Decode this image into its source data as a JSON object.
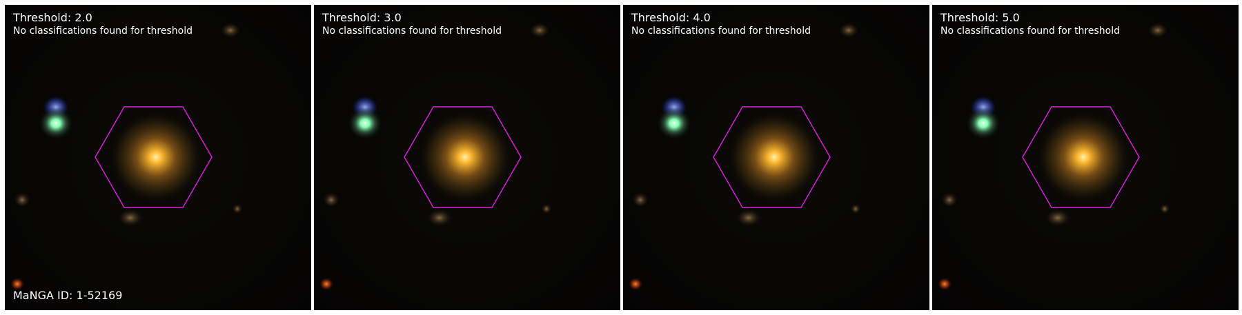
{
  "manga_id": "MaNGA ID: 1-52169",
  "panels": [
    {
      "title": "Threshold: 2.0",
      "subtitle": "No classifications found for threshold"
    },
    {
      "title": "Threshold: 3.0",
      "subtitle": "No classifications found for threshold"
    },
    {
      "title": "Threshold: 4.0",
      "subtitle": "No classifications found for threshold"
    },
    {
      "title": "Threshold: 5.0",
      "subtitle": "No classifications found for threshold"
    }
  ],
  "colors": {
    "ifu_hexagon": "#e020e0",
    "galaxy_core": "#ffc040",
    "star_blue_green": "#b8ffd0",
    "background": "#060504"
  },
  "icons": [
    "central-galaxy",
    "blue-star",
    "hexagon-ifu-footprint"
  ]
}
